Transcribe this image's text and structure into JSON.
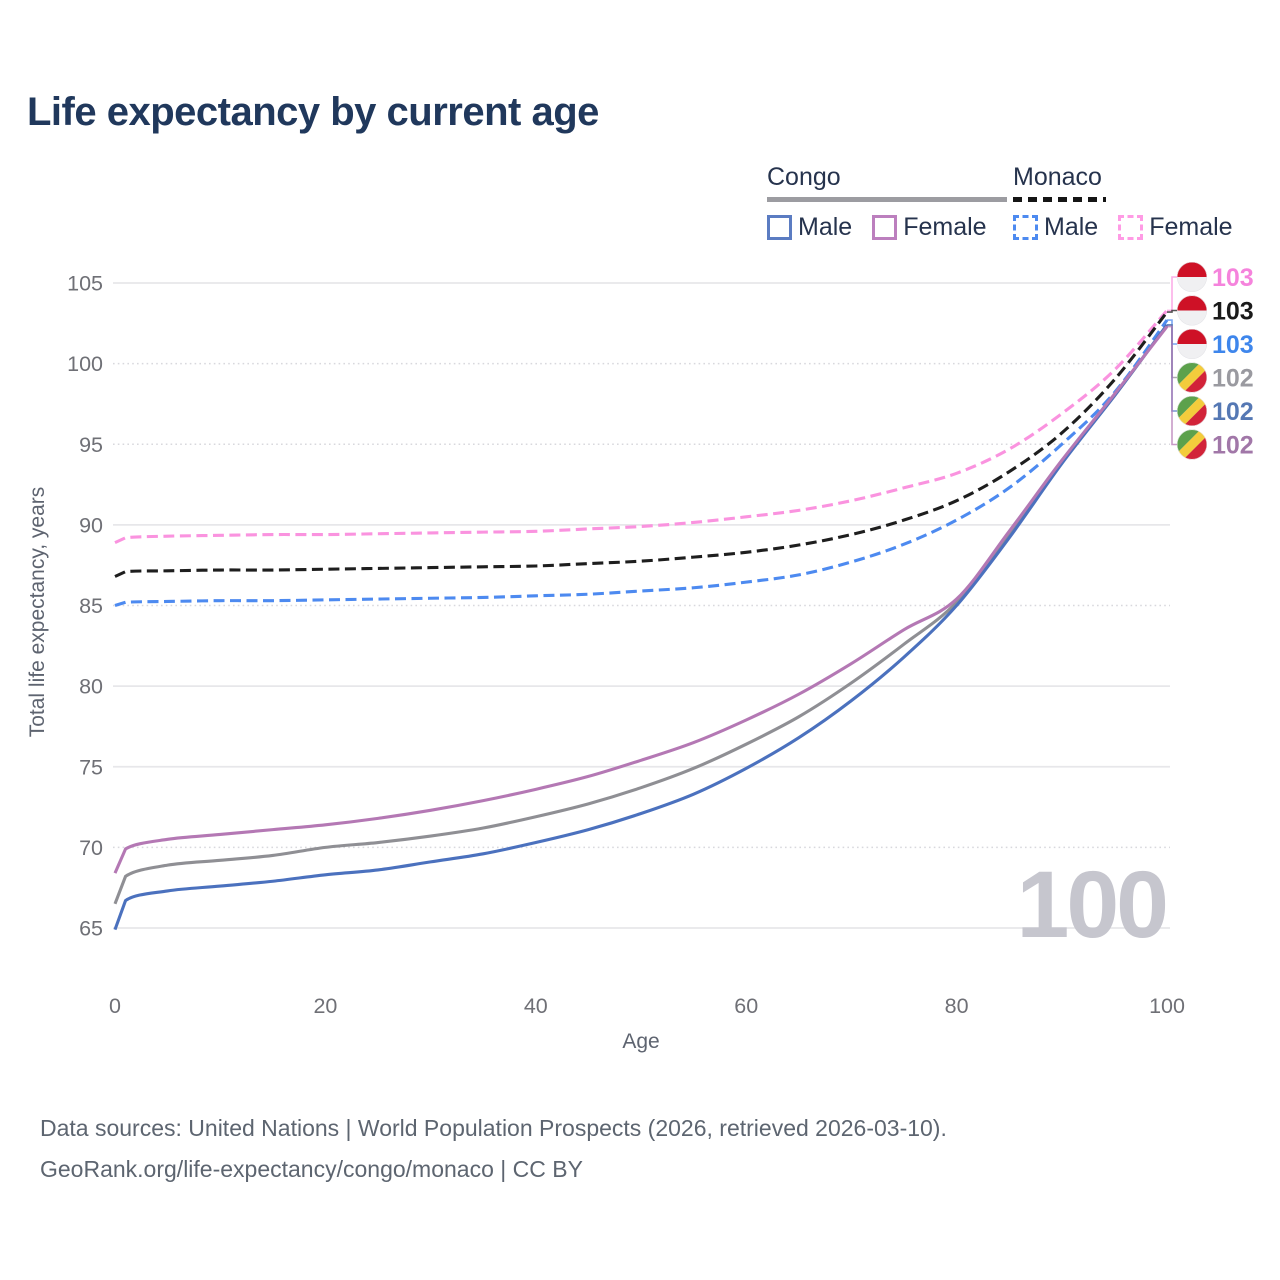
{
  "title": "Life expectancy by current age",
  "legend": {
    "groups": [
      {
        "name": "Congo",
        "line_style": "solid",
        "underline_color": "#9C9CA1",
        "items": [
          {
            "label": "Male",
            "color": "#5B7CC2"
          },
          {
            "label": "Female",
            "color": "#BC7FBE"
          }
        ]
      },
      {
        "name": "Monaco",
        "line_style": "dashed",
        "underline_color": "#151515",
        "items": [
          {
            "label": "Male",
            "color": "#4D8AF0"
          },
          {
            "label": "Female",
            "color": "#FF9BE5"
          }
        ]
      }
    ]
  },
  "chart_data": {
    "type": "line",
    "title": "Life expectancy by current age",
    "xlabel": "Age",
    "ylabel": "Total life expectancy, years",
    "xlim": [
      0,
      100
    ],
    "ylim": [
      65,
      105
    ],
    "x_ticks": [
      0,
      20,
      40,
      60,
      80,
      100
    ],
    "y_ticks": [
      65,
      70,
      75,
      80,
      85,
      90,
      95,
      100,
      105
    ],
    "dotted_gridlines": [
      70,
      85,
      95,
      100
    ],
    "grid": true,
    "legend_position": "top-right",
    "x": [
      0,
      1,
      5,
      10,
      15,
      20,
      25,
      30,
      35,
      40,
      45,
      50,
      55,
      60,
      65,
      70,
      75,
      80,
      85,
      90,
      95,
      100
    ],
    "series": [
      {
        "id": "monaco-female",
        "name": "Monaco Female",
        "country": "Monaco",
        "sex": "Female",
        "dash": true,
        "row": 0,
        "flag": "monaco",
        "line_color": "#FA93DF",
        "label_color": "#F583DC",
        "end_label": "103",
        "values": [
          88.9,
          89.2,
          89.3,
          89.35,
          89.4,
          89.4,
          89.45,
          89.5,
          89.55,
          89.6,
          89.75,
          89.9,
          90.15,
          90.5,
          90.9,
          91.5,
          92.3,
          93.2,
          94.7,
          96.9,
          99.6,
          103.3
        ]
      },
      {
        "id": "monaco-both",
        "name": "Monaco Both sexes",
        "country": "Monaco",
        "sex": "Both",
        "dash": true,
        "row": 1,
        "flag": "monaco",
        "line_color": "#1E1E1E",
        "label_color": "#1A1A1A",
        "end_label": "103",
        "values": [
          86.8,
          87.1,
          87.15,
          87.2,
          87.2,
          87.25,
          87.3,
          87.35,
          87.4,
          87.45,
          87.6,
          87.75,
          88.0,
          88.3,
          88.75,
          89.4,
          90.3,
          91.5,
          93.3,
          95.7,
          99.0,
          103.2
        ]
      },
      {
        "id": "monaco-male",
        "name": "Monaco Male",
        "country": "Monaco",
        "sex": "Male",
        "dash": true,
        "row": 2,
        "flag": "monaco",
        "line_color": "#4D8AF0",
        "label_color": "#3E86EC",
        "end_label": "103",
        "values": [
          85.0,
          85.2,
          85.25,
          85.3,
          85.3,
          85.35,
          85.4,
          85.45,
          85.5,
          85.6,
          85.7,
          85.9,
          86.1,
          86.45,
          86.9,
          87.7,
          88.8,
          90.3,
          92.3,
          95.0,
          98.2,
          102.7
        ]
      },
      {
        "id": "congo-both",
        "name": "Congo Both sexes",
        "country": "Congo",
        "sex": "Both",
        "dash": false,
        "row": 3,
        "flag": "congo",
        "line_color": "#8F8F94",
        "label_color": "#9A9AA0",
        "end_label": "102",
        "values": [
          66.5,
          68.2,
          68.9,
          69.2,
          69.5,
          70.0,
          70.3,
          70.7,
          71.2,
          71.9,
          72.7,
          73.7,
          74.9,
          76.4,
          78.1,
          80.2,
          82.6,
          85.2,
          89.4,
          93.9,
          98.0,
          102.4
        ]
      },
      {
        "id": "congo-male",
        "name": "Congo Male",
        "country": "Congo",
        "sex": "Male",
        "dash": false,
        "row": 4,
        "flag": "congo",
        "line_color": "#4B71BE",
        "label_color": "#5578B4",
        "end_label": "102",
        "values": [
          64.9,
          66.7,
          67.3,
          67.6,
          67.9,
          68.3,
          68.6,
          69.1,
          69.6,
          70.3,
          71.1,
          72.1,
          73.3,
          74.9,
          76.8,
          79.1,
          81.8,
          85.0,
          89.2,
          93.8,
          98.0,
          102.4
        ]
      },
      {
        "id": "congo-female",
        "name": "Congo Female",
        "country": "Congo",
        "sex": "Female",
        "dash": false,
        "row": 5,
        "flag": "congo",
        "line_color": "#B478B4",
        "label_color": "#A177A8",
        "end_label": "102",
        "values": [
          68.4,
          69.9,
          70.5,
          70.8,
          71.1,
          71.4,
          71.8,
          72.3,
          72.9,
          73.6,
          74.4,
          75.4,
          76.5,
          77.9,
          79.5,
          81.4,
          83.5,
          85.4,
          89.6,
          94.0,
          98.1,
          102.3
        ]
      }
    ],
    "flag_colors": {
      "monaco_red": "#CE1126",
      "monaco_white": "#F0F0F2",
      "congo_green": "#5CA14C",
      "congo_yellow": "#F3CC3C",
      "congo_red": "#D22339"
    }
  },
  "watermark": "100",
  "footer": {
    "line1": "Data sources: United Nations | World Population Prospects (2026, retrieved 2026-03-10).",
    "line2": "GeoRank.org/life-expectancy/congo/monaco | CC BY"
  }
}
